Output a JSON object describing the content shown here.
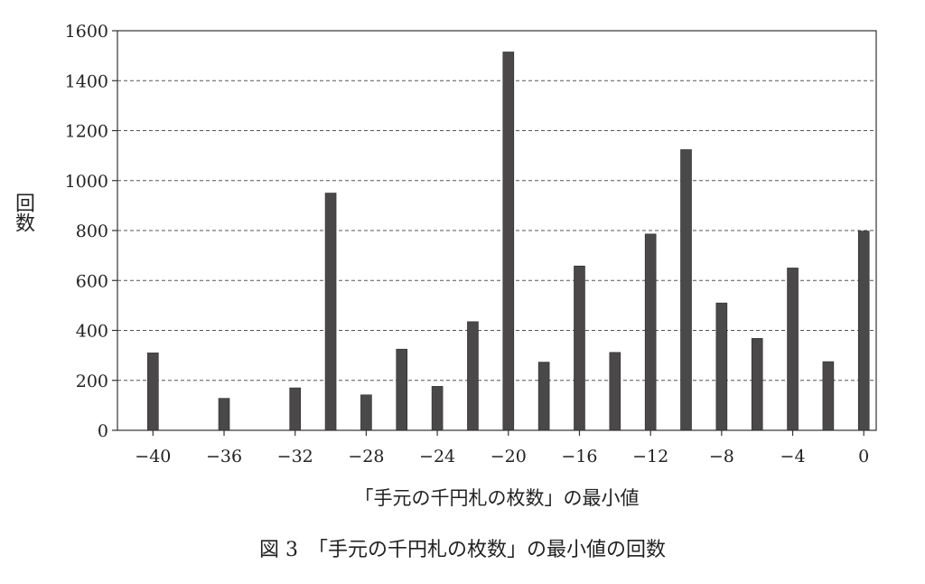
{
  "chart_data": {
    "type": "bar",
    "x": [
      -40,
      -38,
      -36,
      -34,
      -32,
      -30,
      -28,
      -26,
      -24,
      -22,
      -20,
      -18,
      -16,
      -14,
      -12,
      -10,
      -8,
      -6,
      -4,
      -2,
      0
    ],
    "values": [
      310,
      0,
      128,
      0,
      170,
      950,
      142,
      325,
      176,
      435,
      1515,
      273,
      658,
      312,
      786,
      1124,
      510,
      368,
      650,
      275,
      798
    ],
    "xticks": [
      -40,
      -36,
      -32,
      -28,
      -24,
      -20,
      -16,
      -12,
      -8,
      -4,
      0
    ],
    "xtick_labels": [
      "−40",
      "−36",
      "−32",
      "−28",
      "−24",
      "−20",
      "−16",
      "−12",
      "−8",
      "−4",
      "0"
    ],
    "yticks": [
      0,
      200,
      400,
      600,
      800,
      1000,
      1200,
      1400,
      1600
    ],
    "ylim": [
      0,
      1600
    ],
    "xlim": [
      -42,
      0.7
    ],
    "xlabel": "「手元の千円札の枚数」の最小値",
    "ylabel": "回数",
    "grid": "horizontal dashed",
    "bar_color": "#4a4848"
  },
  "caption": "図 3　「手元の千円札の枚数」の最小値の回数"
}
